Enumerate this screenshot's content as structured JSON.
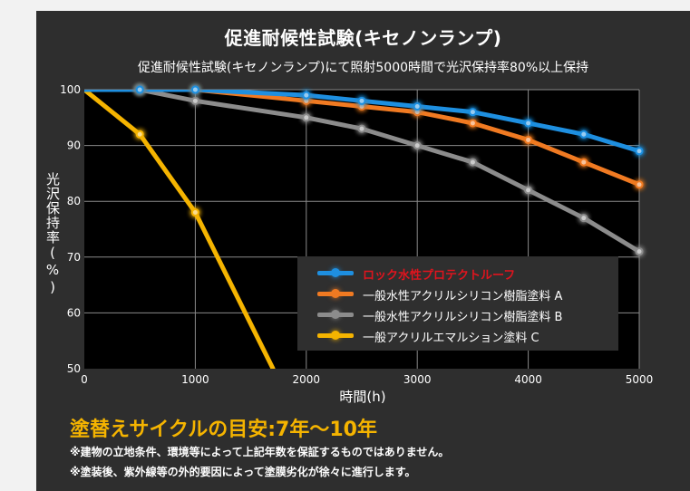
{
  "chart_data": {
    "type": "line",
    "title": "促進耐候性試験(キセノンランプ)",
    "subtitle": "促進耐候性試験(キセノンランプ)にて照射5000時間で光沢保持率80%以上保持",
    "xlabel": "時間(h)",
    "ylabel": "光沢保持率(%)",
    "xlim": [
      0,
      5000
    ],
    "ylim": [
      50,
      100
    ],
    "xticks": [
      0,
      1000,
      2000,
      3000,
      4000,
      5000
    ],
    "yticks": [
      50,
      60,
      70,
      80,
      90,
      100
    ],
    "grid": true,
    "legend_position": "bottom-right",
    "series": [
      {
        "name": "ロック水性プロテクトルーフ",
        "color": "#1e8fe0",
        "label_color": "#e0141e",
        "x": [
          0,
          500,
          1000,
          2000,
          2500,
          3000,
          3500,
          4000,
          4500,
          5000
        ],
        "y": [
          100,
          100,
          100,
          99,
          98,
          97,
          96,
          94,
          92,
          89
        ]
      },
      {
        "name": "一般水性アクリルシリコン樹脂塗料 A",
        "color": "#f07a22",
        "label_color": "#ffffff",
        "x": [
          0,
          500,
          1000,
          2000,
          2500,
          3000,
          3500,
          4000,
          4500,
          5000
        ],
        "y": [
          100,
          100,
          100,
          98,
          97,
          96,
          94,
          91,
          87,
          83
        ]
      },
      {
        "name": "一般水性アクリルシリコン樹脂塗料 B",
        "color": "#8c8c8c",
        "label_color": "#ffffff",
        "x": [
          0,
          500,
          1000,
          2000,
          2500,
          3000,
          3500,
          4000,
          4500,
          5000
        ],
        "y": [
          100,
          100,
          98,
          95,
          93,
          90,
          87,
          82,
          77,
          71
        ]
      },
      {
        "name": "一般アクリルエマルション塗料 C",
        "color": "#f5b400",
        "label_color": "#ffffff",
        "x": [
          0,
          500,
          1000,
          1700
        ],
        "y": [
          100,
          92,
          78,
          50
        ],
        "markers": [
          0,
          500,
          1000
        ]
      }
    ]
  },
  "headline": "塗替えサイクルの目安:7年〜10年",
  "notes": [
    "※建物の立地条件、環境等によって上記年数を保証するものではありません。",
    "※塗装後、紫外線等の外的要因によって塗膜劣化が徐々に進行します。"
  ],
  "colors": {
    "panel_background": "#2e2e2e",
    "plot_background": "#000000",
    "grid": "#8a8a8a",
    "headline": "#f5b400"
  }
}
